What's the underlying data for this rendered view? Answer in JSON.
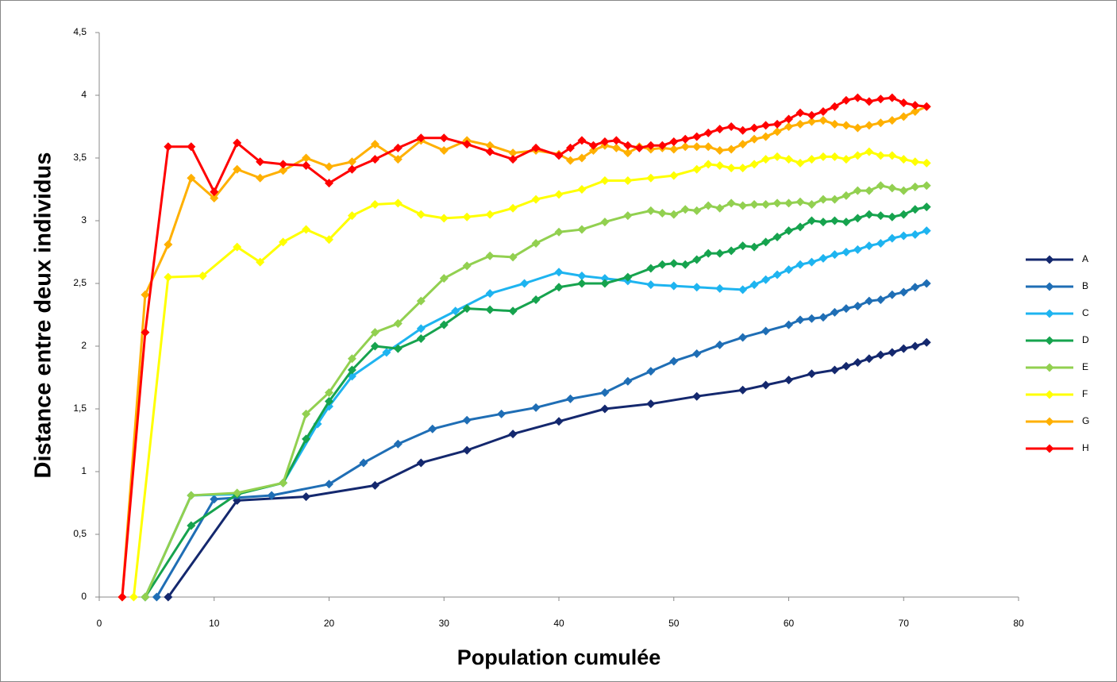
{
  "chart_data": {
    "type": "line",
    "x_label": "Population cumulée",
    "y_label": "Distance entre deux individus",
    "xlim": [
      0,
      80
    ],
    "xticks": [
      0,
      10,
      20,
      30,
      40,
      50,
      60,
      70,
      80
    ],
    "ylim": [
      0,
      4.5
    ],
    "yticks": [
      0,
      {
        "value": 0.5,
        "label": "0,5"
      },
      1,
      {
        "value": 1.5,
        "label": "1,5"
      },
      2,
      {
        "value": 2.5,
        "label": "2,5"
      },
      3,
      {
        "value": 3.5,
        "label": "3,5"
      },
      4,
      {
        "value": 4.5,
        "label": "4,5"
      }
    ],
    "grid": false,
    "legend": "right",
    "marker": "diamond",
    "series": [
      {
        "name": "A",
        "color": "#14286e",
        "x": [
          6,
          12,
          18,
          24,
          28,
          32,
          36,
          40,
          44,
          48,
          52,
          56,
          58,
          60,
          62,
          64,
          65,
          66,
          67,
          68,
          69,
          70,
          71,
          72
        ],
        "values": [
          0,
          0.77,
          0.8,
          0.89,
          1.07,
          1.17,
          1.3,
          1.4,
          1.5,
          1.54,
          1.6,
          1.65,
          1.69,
          1.73,
          1.78,
          1.81,
          1.84,
          1.87,
          1.9,
          1.93,
          1.95,
          1.98,
          2.0,
          2.03
        ]
      },
      {
        "name": "B",
        "color": "#1f6eb5",
        "x": [
          5,
          10,
          15,
          20,
          23,
          26,
          29,
          32,
          35,
          38,
          41,
          44,
          46,
          48,
          50,
          52,
          54,
          56,
          58,
          60,
          61,
          62,
          63,
          64,
          65,
          66,
          67,
          68,
          69,
          70,
          71,
          72
        ],
        "values": [
          0,
          0.78,
          0.81,
          0.9,
          1.07,
          1.22,
          1.34,
          1.41,
          1.46,
          1.51,
          1.58,
          1.63,
          1.72,
          1.8,
          1.88,
          1.94,
          2.01,
          2.07,
          2.12,
          2.17,
          2.21,
          2.22,
          2.23,
          2.27,
          2.3,
          2.32,
          2.36,
          2.37,
          2.41,
          2.43,
          2.47,
          2.5
        ]
      },
      {
        "name": "C",
        "color": "#1eb4f0",
        "x": [
          4,
          8,
          12,
          16,
          19,
          20,
          22,
          25,
          28,
          31,
          34,
          37,
          40,
          42,
          44,
          46,
          48,
          50,
          52,
          54,
          56,
          57,
          58,
          59,
          60,
          61,
          62,
          63,
          64,
          65,
          66,
          67,
          68,
          69,
          70,
          71,
          72
        ],
        "values": [
          0,
          0.81,
          0.82,
          0.91,
          1.38,
          1.52,
          1.76,
          1.95,
          2.14,
          2.28,
          2.42,
          2.5,
          2.59,
          2.56,
          2.54,
          2.52,
          2.49,
          2.48,
          2.47,
          2.46,
          2.45,
          2.49,
          2.53,
          2.57,
          2.61,
          2.65,
          2.67,
          2.7,
          2.73,
          2.75,
          2.77,
          2.8,
          2.82,
          2.86,
          2.88,
          2.89,
          2.92
        ]
      },
      {
        "name": "D",
        "color": "#16a34e",
        "x": [
          4,
          8,
          12,
          16,
          18,
          20,
          22,
          24,
          26,
          28,
          30,
          32,
          34,
          36,
          38,
          40,
          42,
          44,
          46,
          48,
          49,
          50,
          51,
          52,
          53,
          54,
          55,
          56,
          57,
          58,
          59,
          60,
          61,
          62,
          63,
          64,
          65,
          66,
          67,
          68,
          69,
          70,
          71,
          72
        ],
        "values": [
          0,
          0.57,
          0.82,
          0.91,
          1.26,
          1.56,
          1.81,
          2.0,
          1.98,
          2.06,
          2.17,
          2.3,
          2.29,
          2.28,
          2.37,
          2.47,
          2.5,
          2.5,
          2.55,
          2.62,
          2.65,
          2.66,
          2.65,
          2.69,
          2.74,
          2.74,
          2.76,
          2.8,
          2.79,
          2.83,
          2.87,
          2.92,
          2.95,
          3.0,
          2.99,
          3.0,
          2.99,
          3.02,
          3.05,
          3.04,
          3.03,
          3.05,
          3.09,
          3.11
        ]
      },
      {
        "name": "E",
        "color": "#92d050",
        "x": [
          4,
          8,
          12,
          16,
          18,
          20,
          22,
          24,
          26,
          28,
          30,
          32,
          34,
          36,
          38,
          40,
          42,
          44,
          46,
          48,
          49,
          50,
          51,
          52,
          53,
          54,
          55,
          56,
          57,
          58,
          59,
          60,
          61,
          62,
          63,
          64,
          65,
          66,
          67,
          68,
          69,
          70,
          71,
          72
        ],
        "values": [
          0,
          0.81,
          0.83,
          0.91,
          1.46,
          1.63,
          1.9,
          2.11,
          2.18,
          2.36,
          2.54,
          2.64,
          2.72,
          2.71,
          2.82,
          2.91,
          2.93,
          2.99,
          3.04,
          3.08,
          3.06,
          3.05,
          3.09,
          3.08,
          3.12,
          3.1,
          3.14,
          3.12,
          3.13,
          3.13,
          3.14,
          3.14,
          3.15,
          3.13,
          3.17,
          3.17,
          3.2,
          3.24,
          3.24,
          3.28,
          3.26,
          3.24,
          3.27,
          3.28
        ]
      },
      {
        "name": "F",
        "color": "#ffff00",
        "x": [
          3,
          6,
          9,
          12,
          14,
          16,
          18,
          20,
          22,
          24,
          26,
          28,
          30,
          32,
          34,
          36,
          38,
          40,
          42,
          44,
          46,
          48,
          50,
          52,
          53,
          54,
          55,
          56,
          57,
          58,
          59,
          60,
          61,
          62,
          63,
          64,
          65,
          66,
          67,
          68,
          69,
          70,
          71,
          72
        ],
        "values": [
          0,
          2.55,
          2.56,
          2.79,
          2.67,
          2.83,
          2.93,
          2.85,
          3.04,
          3.13,
          3.14,
          3.05,
          3.02,
          3.03,
          3.05,
          3.1,
          3.17,
          3.21,
          3.25,
          3.32,
          3.32,
          3.34,
          3.36,
          3.41,
          3.45,
          3.44,
          3.42,
          3.42,
          3.45,
          3.49,
          3.51,
          3.49,
          3.46,
          3.49,
          3.51,
          3.51,
          3.49,
          3.52,
          3.55,
          3.52,
          3.52,
          3.49,
          3.47,
          3.46
        ]
      },
      {
        "name": "G",
        "color": "#ffb000",
        "x": [
          2,
          4,
          6,
          8,
          10,
          12,
          14,
          16,
          18,
          20,
          22,
          24,
          26,
          28,
          30,
          32,
          34,
          36,
          38,
          40,
          41,
          42,
          43,
          44,
          45,
          46,
          47,
          48,
          49,
          50,
          51,
          52,
          53,
          54,
          55,
          56,
          57,
          58,
          59,
          60,
          61,
          62,
          63,
          64,
          65,
          66,
          67,
          68,
          69,
          70,
          71,
          72
        ],
        "values": [
          0,
          2.41,
          2.81,
          3.34,
          3.18,
          3.41,
          3.34,
          3.4,
          3.5,
          3.43,
          3.47,
          3.61,
          3.49,
          3.64,
          3.56,
          3.64,
          3.6,
          3.54,
          3.56,
          3.53,
          3.48,
          3.5,
          3.56,
          3.6,
          3.58,
          3.54,
          3.59,
          3.57,
          3.58,
          3.57,
          3.59,
          3.59,
          3.59,
          3.56,
          3.57,
          3.61,
          3.65,
          3.67,
          3.71,
          3.75,
          3.77,
          3.79,
          3.8,
          3.77,
          3.76,
          3.74,
          3.76,
          3.78,
          3.8,
          3.83,
          3.87,
          3.91
        ]
      },
      {
        "name": "H",
        "color": "#ff0000",
        "x": [
          2,
          4,
          6,
          8,
          10,
          12,
          14,
          16,
          18,
          20,
          22,
          24,
          26,
          28,
          30,
          32,
          34,
          36,
          38,
          40,
          41,
          42,
          43,
          44,
          45,
          46,
          47,
          48,
          49,
          50,
          51,
          52,
          53,
          54,
          55,
          56,
          57,
          58,
          59,
          60,
          61,
          62,
          63,
          64,
          65,
          66,
          67,
          68,
          69,
          70,
          71,
          72
        ],
        "values": [
          0,
          2.11,
          3.59,
          3.59,
          3.23,
          3.62,
          3.47,
          3.45,
          3.44,
          3.3,
          3.41,
          3.49,
          3.58,
          3.66,
          3.66,
          3.61,
          3.55,
          3.49,
          3.58,
          3.52,
          3.58,
          3.64,
          3.6,
          3.63,
          3.64,
          3.6,
          3.58,
          3.6,
          3.6,
          3.63,
          3.65,
          3.67,
          3.7,
          3.73,
          3.75,
          3.72,
          3.74,
          3.76,
          3.77,
          3.81,
          3.86,
          3.84,
          3.87,
          3.91,
          3.96,
          3.98,
          3.95,
          3.97,
          3.98,
          3.94,
          3.92,
          3.91
        ]
      }
    ]
  }
}
